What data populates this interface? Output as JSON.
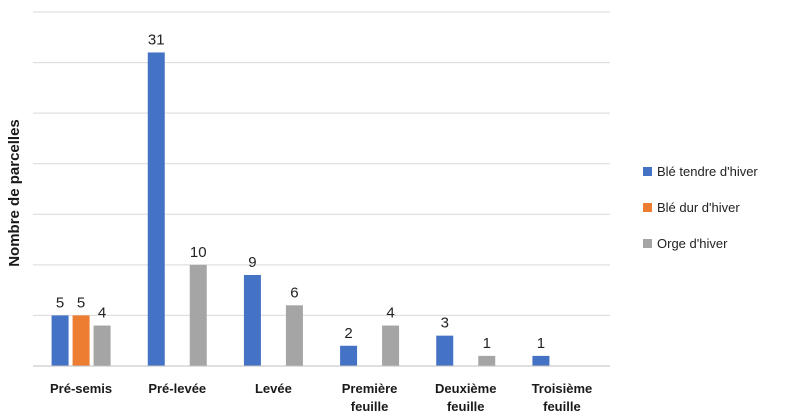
{
  "chart_data": {
    "type": "bar",
    "ylabel": "Nombre de parcelles",
    "xlabel": "",
    "ylim": [
      0,
      35
    ],
    "grid": true,
    "legend_position": "right",
    "categories": [
      [
        "Pré-semis"
      ],
      [
        "Pré-levée"
      ],
      [
        "Levée"
      ],
      [
        "Première",
        "feuille"
      ],
      [
        "Deuxième",
        "feuille"
      ],
      [
        "Troisième",
        "feuille"
      ]
    ],
    "series": [
      {
        "name": "Blé tendre d'hiver",
        "color": "#4472c4",
        "values": [
          5,
          31,
          9,
          2,
          3,
          1
        ]
      },
      {
        "name": "Blé dur d'hiver",
        "color": "#ed7d31",
        "values": [
          5,
          null,
          null,
          null,
          null,
          null
        ]
      },
      {
        "name": "Orge d'hiver",
        "color": "#a5a5a5",
        "values": [
          4,
          10,
          6,
          4,
          1,
          null
        ]
      }
    ]
  }
}
